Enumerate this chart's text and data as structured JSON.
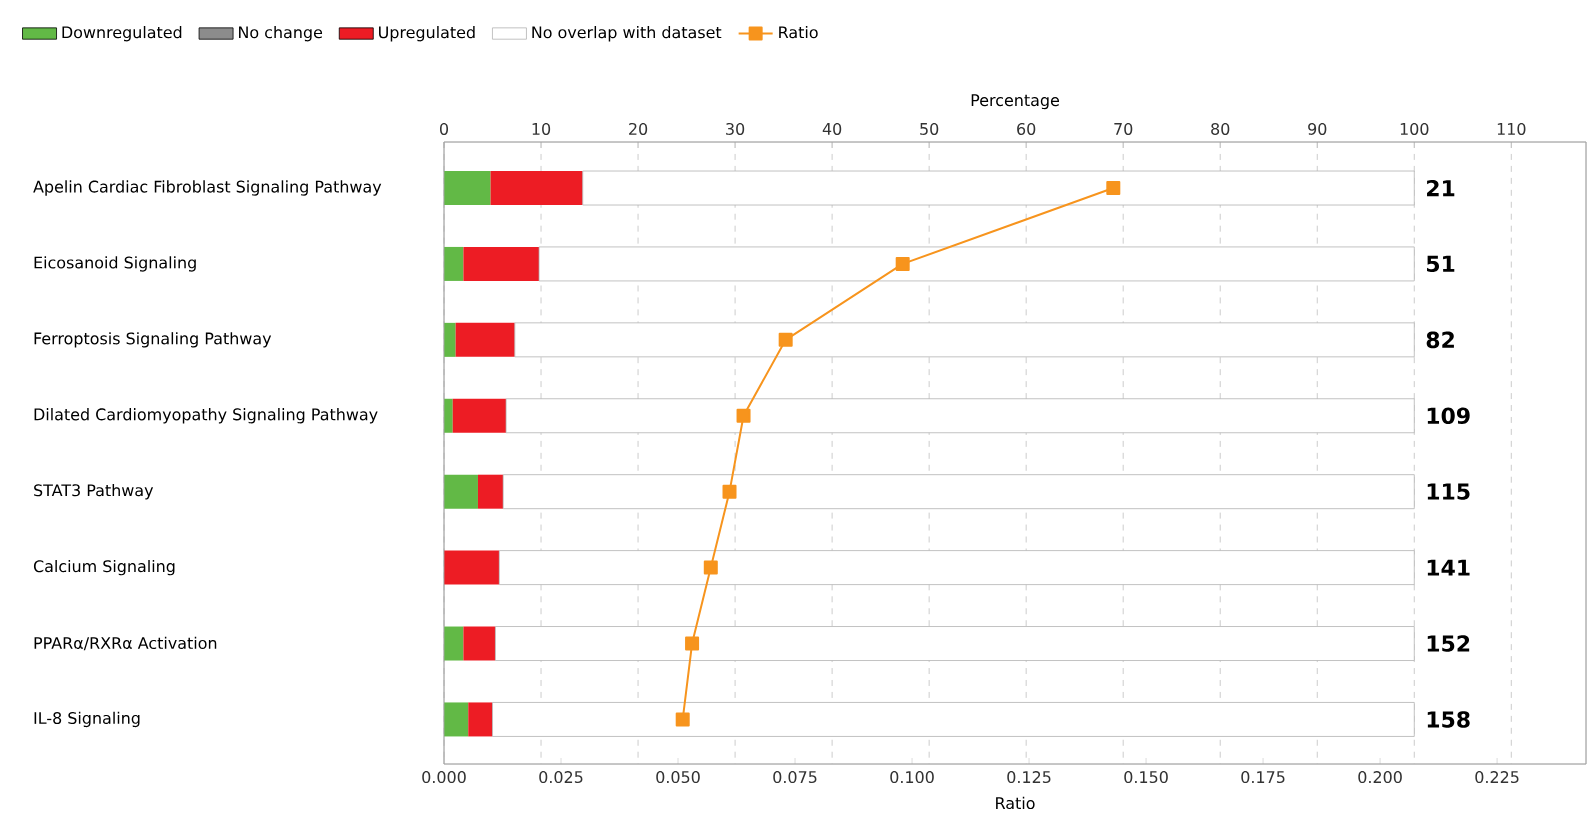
{
  "chart_data": {
    "type": "bar",
    "orientation": "horizontal",
    "stacked": true,
    "xlabel": "Percentage",
    "x2label": "Ratio",
    "categories": [
      "Apelin Cardiac Fibroblast Signaling Pathway",
      "Eicosanoid Signaling",
      "Ferroptosis Signaling Pathway",
      "Dilated Cardiomyopathy Signaling Pathway",
      "STAT3 Pathway",
      "Calcium Signaling",
      "PPARα/RXRα Activation",
      "IL-8 Signaling"
    ],
    "series": [
      {
        "name": "Downregulated",
        "color": "#62b946",
        "values": [
          4.8,
          2.0,
          1.2,
          0.9,
          3.5,
          0,
          2.0,
          2.5
        ]
      },
      {
        "name": "No change",
        "color": "#8c8c8c",
        "values": [
          0,
          0,
          0,
          0,
          0,
          0,
          0,
          0
        ]
      },
      {
        "name": "Upregulated",
        "color": "#ed1c24",
        "values": [
          9.5,
          7.8,
          6.1,
          5.5,
          2.6,
          5.7,
          3.3,
          2.5
        ]
      },
      {
        "name": "No overlap with dataset",
        "color": "#ffffff",
        "values": [
          85.7,
          90.2,
          92.7,
          93.6,
          93.9,
          94.3,
          94.7,
          95.0
        ]
      },
      {
        "name": "Ratio",
        "type": "line",
        "axis": "x2",
        "color": "#f7941d",
        "marker": "square",
        "line_style": "solid",
        "values": [
          0.143,
          0.098,
          0.073,
          0.064,
          0.061,
          0.057,
          0.053,
          0.051
        ]
      }
    ],
    "annotations": [
      "21",
      "51",
      "82",
      "109",
      "115",
      "141",
      "152",
      "158"
    ],
    "xlim": [
      0,
      117.7
    ],
    "xticks": [
      0,
      10,
      20,
      30,
      40,
      50,
      60,
      70,
      80,
      90,
      100,
      110
    ],
    "x2lim": [
      0,
      0.244
    ],
    "x2ticks": [
      {
        "value": 0,
        "label": "0.000"
      },
      0.025,
      {
        "value": 0.05,
        "label": "0.050"
      },
      0.075,
      {
        "value": 0.1,
        "label": "0.100"
      },
      0.125,
      {
        "value": 0.15,
        "label": "0.150"
      },
      0.175,
      {
        "value": 0.2,
        "label": "0.200"
      },
      0.225
    ],
    "grid": "x",
    "legend": "top left"
  }
}
